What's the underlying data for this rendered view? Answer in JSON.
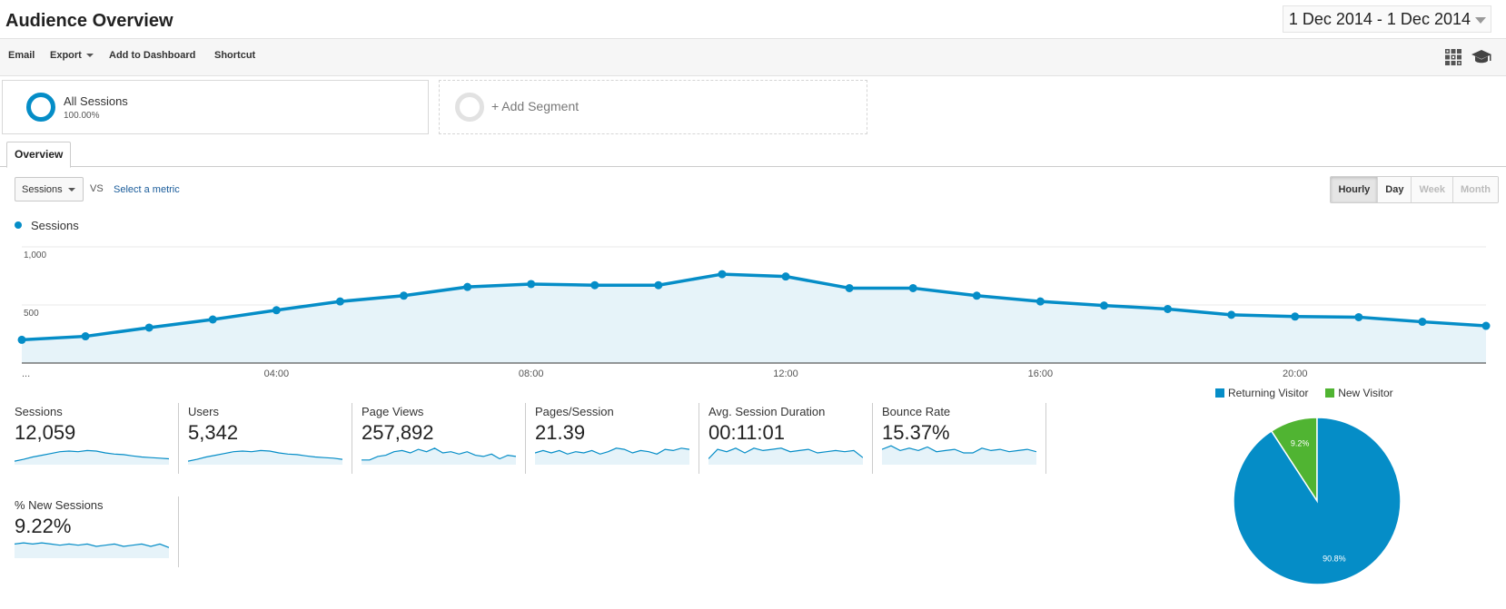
{
  "header": {
    "title": "Audience Overview",
    "date_range": "1 Dec 2014 - 1 Dec 2014"
  },
  "toolbar": {
    "email": "Email",
    "export": "Export",
    "add_to_dashboard": "Add to Dashboard",
    "shortcut": "Shortcut",
    "icons": [
      "grid-icon",
      "graduation-cap-icon"
    ]
  },
  "segments": {
    "all_sessions": {
      "name": "All Sessions",
      "percent": "100.00%"
    },
    "add_segment": "+ Add Segment"
  },
  "tabs": {
    "overview": "Overview"
  },
  "controls": {
    "metric": "Sessions",
    "vs": "VS",
    "select_metric": "Select a metric",
    "granularity": [
      {
        "label": "Hourly",
        "state": "active"
      },
      {
        "label": "Day",
        "state": "normal"
      },
      {
        "label": "Week",
        "state": "disabled"
      },
      {
        "label": "Month",
        "state": "disabled"
      }
    ]
  },
  "chart_data": [
    {
      "type": "area",
      "series": [
        {
          "name": "Sessions",
          "color": "#058dc7",
          "values": [
            200,
            230,
            305,
            375,
            455,
            530,
            580,
            655,
            680,
            670,
            670,
            765,
            745,
            645,
            645,
            580,
            530,
            495,
            465,
            415,
            400,
            395,
            355,
            320
          ]
        }
      ],
      "x": [
        0,
        1,
        2,
        3,
        4,
        5,
        6,
        7,
        8,
        9,
        10,
        11,
        12,
        13,
        14,
        15,
        16,
        17,
        18,
        19,
        20,
        21,
        22,
        23
      ],
      "x_tick_labels": [
        {
          "x": 0,
          "label": "..."
        },
        {
          "x": 4,
          "label": "04:00"
        },
        {
          "x": 8,
          "label": "08:00"
        },
        {
          "x": 12,
          "label": "12:00"
        },
        {
          "x": 16,
          "label": "16:00"
        },
        {
          "x": 20,
          "label": "20:00"
        }
      ],
      "y_ticks": [
        {
          "value": 1000,
          "label": "1,000"
        },
        {
          "value": 500,
          "label": "500"
        }
      ],
      "ylim": [
        0,
        1000
      ],
      "grid": true,
      "legend": "top-left"
    },
    {
      "type": "pie",
      "slices": [
        {
          "name": "Returning Visitor",
          "value": 90.8,
          "label": "90.8%",
          "color": "#058dc7"
        },
        {
          "name": "New Visitor",
          "value": 9.2,
          "label": "9.2%",
          "color": "#50b432"
        }
      ],
      "legend": "top"
    }
  ],
  "scorecards": [
    {
      "label": "Sessions",
      "value": "12,059",
      "spark": [
        3,
        4.5,
        6.5,
        8,
        9.5,
        11,
        11.5,
        11,
        12,
        11.5,
        10,
        9,
        8.5,
        7.5,
        6.5,
        6,
        5.5,
        5
      ]
    },
    {
      "label": "Users",
      "value": "5,342",
      "spark": [
        3,
        4.5,
        6.5,
        8,
        9.5,
        11,
        11.5,
        11,
        12,
        11.5,
        10,
        9,
        8.5,
        7.5,
        6.5,
        6,
        5.5,
        4.5
      ]
    },
    {
      "label": "Page Views",
      "value": "257,892",
      "spark": [
        4,
        4,
        7,
        8,
        11,
        12,
        10,
        13,
        11,
        14,
        10,
        11,
        9,
        11,
        8,
        7,
        9,
        5,
        8,
        7
      ]
    },
    {
      "label": "Pages/Session",
      "value": "21.39",
      "spark": [
        10,
        12,
        10,
        12,
        9,
        11,
        10,
        12,
        9,
        11,
        14,
        13,
        10,
        12,
        11,
        9,
        13,
        12,
        14,
        13
      ]
    },
    {
      "label": "Avg. Session Duration",
      "value": "00:11:01",
      "spark": [
        5,
        13,
        11,
        14,
        10,
        14,
        12,
        13,
        14,
        11,
        12,
        13,
        10,
        11,
        12,
        11,
        12,
        6
      ]
    },
    {
      "label": "Bounce Rate",
      "value": "15.37%",
      "spark": [
        13,
        16,
        12,
        14,
        12,
        15,
        11,
        12,
        13,
        10,
        10,
        14,
        12,
        13,
        11,
        12,
        13,
        11
      ]
    },
    {
      "label": "% New Sessions",
      "value": "9.22%",
      "spark": [
        12,
        13,
        12,
        13,
        12,
        11,
        12,
        11,
        12,
        10,
        11,
        12,
        10,
        11,
        12,
        10,
        12,
        9
      ]
    }
  ]
}
